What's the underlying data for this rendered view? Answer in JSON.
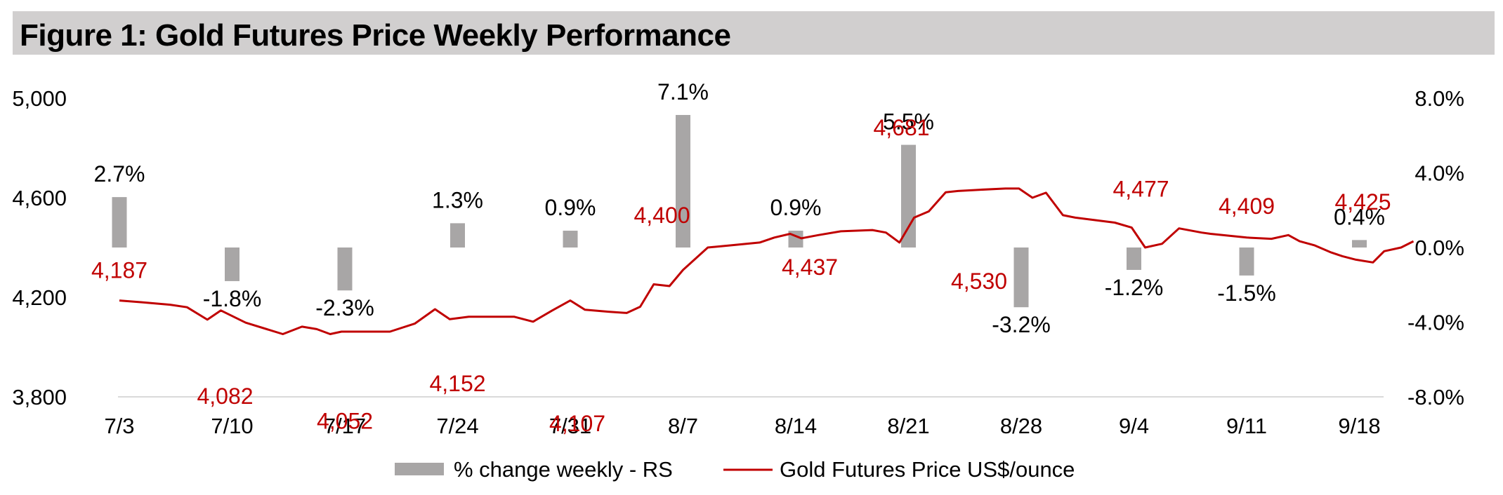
{
  "title": "Figure 1: Gold Futures Price Weekly Performance",
  "chart_data": {
    "type": "bar+line",
    "categories": [
      "7/3",
      "7/10",
      "7/17",
      "7/24",
      "7/31",
      "8/7",
      "8/14",
      "8/21",
      "8/28",
      "9/4",
      "9/11",
      "9/18"
    ],
    "ylim_left": [
      3800,
      5000
    ],
    "yticks_left": [
      "3,800",
      "4,200",
      "4,600",
      "5,000"
    ],
    "ylim_right": [
      -8.0,
      8.0
    ],
    "yticks_right": [
      "-8.0%",
      "-4.0%",
      "0.0%",
      "4.0%",
      "8.0%"
    ],
    "grid": false,
    "legend_position": "bottom",
    "colors": {
      "bar": "#a8a6a6",
      "line": "#c00000",
      "title_bar": "#d1cfcf"
    },
    "series": [
      {
        "name": "% change weekly - RS",
        "type": "bar",
        "axis": "right",
        "values": [
          2.7,
          -1.8,
          -2.3,
          1.3,
          0.9,
          7.1,
          0.9,
          5.5,
          -3.2,
          -1.2,
          -1.5,
          0.4
        ],
        "labels": [
          "2.7%",
          "-1.8%",
          "-2.3%",
          "1.3%",
          "0.9%",
          "7.1%",
          "0.9%",
          "5.5%",
          "-3.2%",
          "-1.2%",
          "-1.5%",
          "0.4%"
        ]
      },
      {
        "name": "Gold Futures Price US$/ounce",
        "type": "line",
        "axis": "left",
        "x": [
          0,
          0.2,
          0.45,
          0.6,
          0.78,
          0.9,
          1.12,
          1.45,
          1.62,
          1.75,
          1.87,
          1.97,
          2.1,
          2.25,
          2.4,
          2.62,
          2.8,
          2.93,
          3.1,
          3.3,
          3.5,
          3.67,
          3.84,
          4.0,
          4.13,
          4.34,
          4.5,
          4.62,
          4.74,
          4.88,
          5.0,
          5.22,
          5.45,
          5.68,
          5.81,
          5.95,
          6.05,
          6.2,
          6.4,
          6.68,
          6.8,
          6.92,
          7.05,
          7.18,
          7.33,
          7.44,
          7.64,
          7.86,
          7.98,
          8.1,
          8.22,
          8.37,
          8.48,
          8.83,
          8.98,
          9.1,
          9.25,
          9.4,
          9.6,
          9.68,
          10.0,
          10.22,
          10.37,
          10.47,
          10.6,
          10.75,
          10.85,
          10.97,
          11.12,
          11.22,
          11.37,
          11.48
        ],
        "values": [
          4187,
          4180,
          4170,
          4160,
          4110,
          4147,
          4098,
          4052,
          4082,
          4072,
          4052,
          4062,
          4062,
          4062,
          4062,
          4094,
          4152,
          4112,
          4122,
          4122,
          4122,
          4102,
          4147,
          4187,
          4150,
          4142,
          4137,
          4162,
          4252,
          4245,
          4310,
          4400,
          4410,
          4420,
          4440,
          4455,
          4437,
          4450,
          4465,
          4470,
          4460,
          4420,
          4520,
          4545,
          4622,
          4627,
          4632,
          4637,
          4637,
          4600,
          4620,
          4530,
          4520,
          4500,
          4480,
          4400,
          4415,
          4477,
          4460,
          4455,
          4440,
          4435,
          4450,
          4425,
          4409,
          4380,
          4365,
          4351,
          4340,
          4385,
          4400,
          4425
        ]
      }
    ],
    "data_labels": [
      {
        "text": "4,187",
        "x": 0,
        "value": 4187
      },
      {
        "text": "4,082",
        "x": 1,
        "value": 4082
      },
      {
        "text": "4,052",
        "x": 2,
        "value": 4052
      },
      {
        "text": "4,152",
        "x": 3,
        "value": 4152
      },
      {
        "text": "4,107",
        "x": 4,
        "value": 4107
      },
      {
        "text": "4,400",
        "x": 5,
        "value": 4400
      },
      {
        "text": "4,437",
        "x": 6,
        "value": 4437
      },
      {
        "text": "4,681",
        "x": 7,
        "value": 4681
      },
      {
        "text": "4,530",
        "x": 8,
        "value": 4530
      },
      {
        "text": "4,477",
        "x": 9,
        "value": 4477
      },
      {
        "text": "4,409",
        "x": 10,
        "value": 4409
      },
      {
        "text": "4,425",
        "x": 11,
        "value": 4425
      }
    ]
  }
}
